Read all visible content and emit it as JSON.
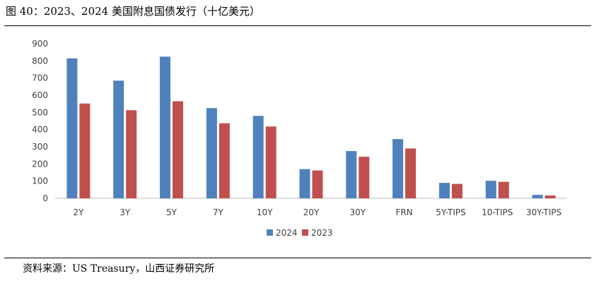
{
  "figure": {
    "title": "图 40：2023、2024 美国附息国债发行（十亿美元）",
    "source": "资料来源：US Treasury，山西证券研究所"
  },
  "chart_data": {
    "type": "bar",
    "title": "图 40：2023、2024 美国附息国债发行（十亿美元）",
    "categories": [
      "2Y",
      "3Y",
      "5Y",
      "7Y",
      "10Y",
      "20Y",
      "30Y",
      "FRN",
      "5Y-TIPS",
      "10-TIPS",
      "30Y-TIPS"
    ],
    "series": [
      {
        "name": "2024",
        "color": "#4f81bd",
        "values": [
          815,
          685,
          825,
          525,
          480,
          170,
          275,
          345,
          90,
          102,
          20
        ]
      },
      {
        "name": "2023",
        "color": "#c0504d",
        "values": [
          552,
          513,
          565,
          437,
          418,
          162,
          242,
          290,
          84,
          96,
          17
        ]
      }
    ],
    "ylim": [
      0,
      900
    ],
    "yticks": [
      0,
      100,
      200,
      300,
      400,
      500,
      600,
      700,
      800,
      900
    ],
    "xlabel": "",
    "ylabel": "",
    "grid": false,
    "legend": "bottom-center"
  }
}
